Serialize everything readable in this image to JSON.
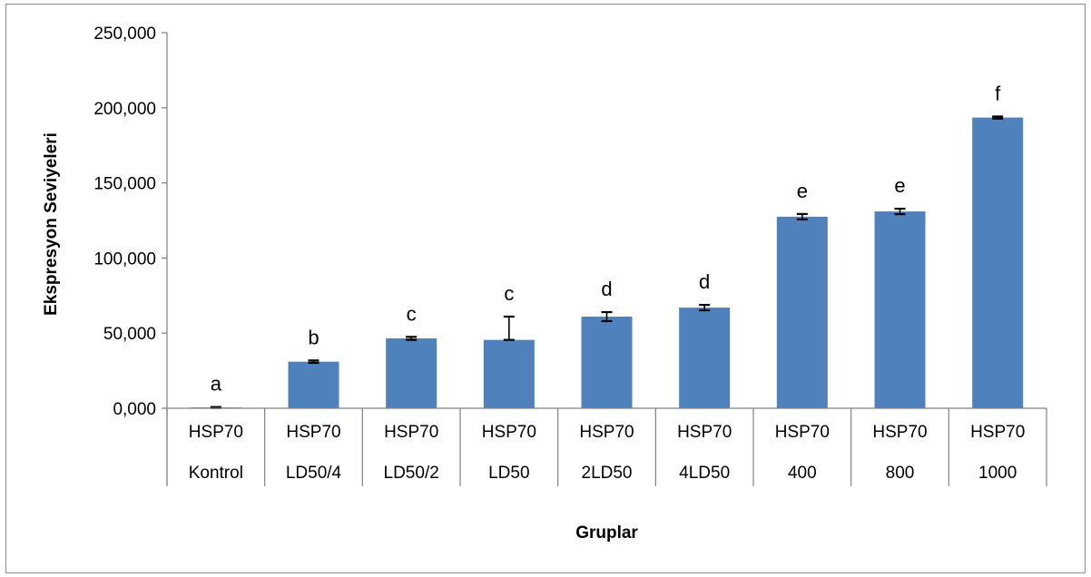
{
  "chart_data": {
    "type": "bar",
    "title": "",
    "xlabel": "Gruplar",
    "ylabel": "Ekspresyon Seviyeleri",
    "ylim": [
      0,
      250000
    ],
    "yticks": [
      0,
      50000,
      100000,
      150000,
      200000,
      250000
    ],
    "ytick_labels": [
      "0,000",
      "50,000",
      "100,000",
      "150,000",
      "200,000",
      "250,000"
    ],
    "grid": false,
    "legend": "none",
    "bar_color": "#4f81bd",
    "categories": [
      {
        "line1": "HSP70",
        "line2": "Kontrol"
      },
      {
        "line1": "HSP70",
        "line2": "LD50/4"
      },
      {
        "line1": "HSP70",
        "line2": "LD50/2"
      },
      {
        "line1": "HSP70",
        "line2": "LD50"
      },
      {
        "line1": "HSP70",
        "line2": "2LD50"
      },
      {
        "line1": "HSP70",
        "line2": "4LD50"
      },
      {
        "line1": "HSP70",
        "line2": "400"
      },
      {
        "line1": "HSP70",
        "line2": "800"
      },
      {
        "line1": "HSP70",
        "line2": "1000"
      }
    ],
    "values": [
      500,
      31000,
      46500,
      45500,
      61000,
      67000,
      127500,
      131000,
      193500
    ],
    "error_plus": [
      300,
      800,
      1000,
      15500,
      3000,
      1800,
      1800,
      1800,
      700
    ],
    "error_minus": [
      300,
      800,
      1000,
      0,
      3000,
      1800,
      1800,
      1800,
      700
    ],
    "significance_labels": [
      "a",
      "b",
      "c",
      "c",
      "d",
      "d",
      "e",
      "e",
      "f"
    ]
  }
}
